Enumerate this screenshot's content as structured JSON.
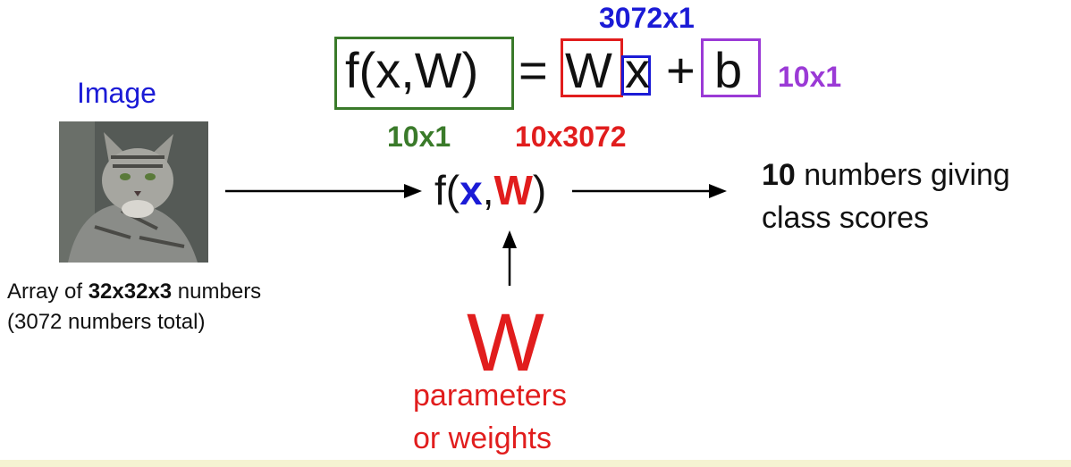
{
  "colors": {
    "blue": "#1b1bd6",
    "red": "#e11d1d",
    "green": "#3a7a2a",
    "purple": "#9b3ad6",
    "black": "#111111"
  },
  "equation": {
    "lhs": "f(x,W)",
    "equals": "=",
    "W": "W",
    "x": "x",
    "plus": "+",
    "b": "b",
    "dim_x": "3072x1",
    "dim_b": "10x1",
    "dim_f": "10x1",
    "dim_W": "10x3072"
  },
  "input": {
    "label": "Image",
    "caption_prefix": "Array of ",
    "caption_bold": "32x32x3",
    "caption_suffix": " numbers",
    "caption_line2": "(3072 numbers total)"
  },
  "function": {
    "f_open": "f(",
    "x": "x",
    "comma": ",",
    "W": "W",
    "close": ")"
  },
  "output": {
    "bold": "10",
    "line1_rest": " numbers giving",
    "line2": "class scores"
  },
  "weights": {
    "symbol": "W",
    "line1": "parameters",
    "line2": "or weights"
  }
}
